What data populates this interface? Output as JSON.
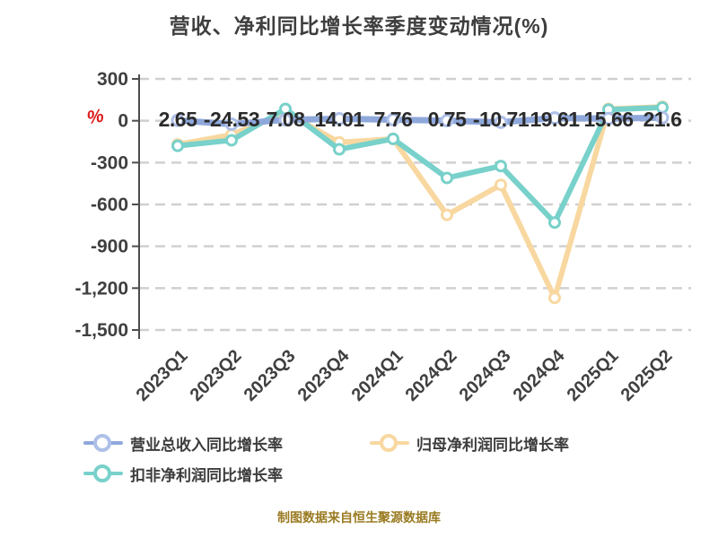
{
  "title": "营收、净利同比增长率季度变动情况(%)",
  "caption": "制图数据来自恒生聚源数据库",
  "y_axis": {
    "unit": "%",
    "unit_color": "#de1c1c",
    "tick_labels": [
      "300",
      "0",
      "-300",
      "-600",
      "-900",
      "-1,200",
      "-1,500"
    ],
    "tick_values": [
      300,
      0,
      -300,
      -600,
      -900,
      -1200,
      -1500
    ]
  },
  "x_axis": {
    "categories": [
      "2023Q1",
      "2023Q2",
      "2023Q3",
      "2023Q4",
      "2024Q1",
      "2024Q2",
      "2024Q3",
      "2024Q4",
      "2025Q1",
      "2025Q2"
    ]
  },
  "chart_data": {
    "type": "line",
    "title": "营收、净利同比增长率季度变动情况(%)",
    "categories": [
      "2023Q1",
      "2023Q2",
      "2023Q3",
      "2023Q4",
      "2024Q1",
      "2024Q2",
      "2024Q3",
      "2024Q4",
      "2025Q1",
      "2025Q2"
    ],
    "series": [
      {
        "key": "revenue_total_yoy",
        "name": "营业总收入同比增长率",
        "color": "#8fa8db",
        "marker_ring": "#aec0e8",
        "values": [
          2.65,
          -24.53,
          7.08,
          14.01,
          7.76,
          0.75,
          -10.71,
          19.61,
          15.66,
          21.6
        ],
        "labels": [
          "2.65",
          "-24.53",
          "7.08",
          "14.01",
          "7.76",
          "0.75",
          "-10.71",
          "19.61",
          "15.66",
          "21.6"
        ],
        "labels_shown": true,
        "estimated": false
      },
      {
        "key": "net_profit_attr_yoy",
        "name": "归母净利润同比增长率",
        "color": "#f8d8a0",
        "marker_ring": "#f8d8a0",
        "values": [
          -170,
          -100,
          60,
          -155,
          -130,
          -675,
          -460,
          -1270,
          85,
          100
        ],
        "labels_shown": false,
        "estimated": true
      },
      {
        "key": "non_gaap_net_profit_yoy",
        "name": "扣非净利润同比增长率",
        "color": "#78d1ca",
        "marker_ring": "#78d1ca",
        "values": [
          -180,
          -140,
          85,
          -205,
          -130,
          -410,
          -325,
          -730,
          80,
          95
        ],
        "labels_shown": false,
        "estimated": true
      }
    ],
    "ylim": [
      -1500,
      300
    ],
    "grid": "horizontal-dashed",
    "legend_position": "bottom"
  },
  "legend": {
    "items": [
      {
        "label": "营业总收入同比增长率",
        "color": "#8fa8db",
        "ring": "#aec0e8"
      },
      {
        "label": "归母净利润同比增长率",
        "color": "#f8d8a0",
        "ring": "#f8d8a0"
      },
      {
        "label": "扣非净利润同比增长率",
        "color": "#78d1ca",
        "ring": "#78d1ca"
      }
    ]
  },
  "colors": {
    "background": "#ffffff",
    "title_text": "#3e3e3e",
    "axis_line": "#4d4d4d",
    "tick_text": "#3f3f3f",
    "gridline": "#d0d0d0",
    "value_label_text": "#2a2a2a",
    "caption_text": "#9a7b22"
  }
}
